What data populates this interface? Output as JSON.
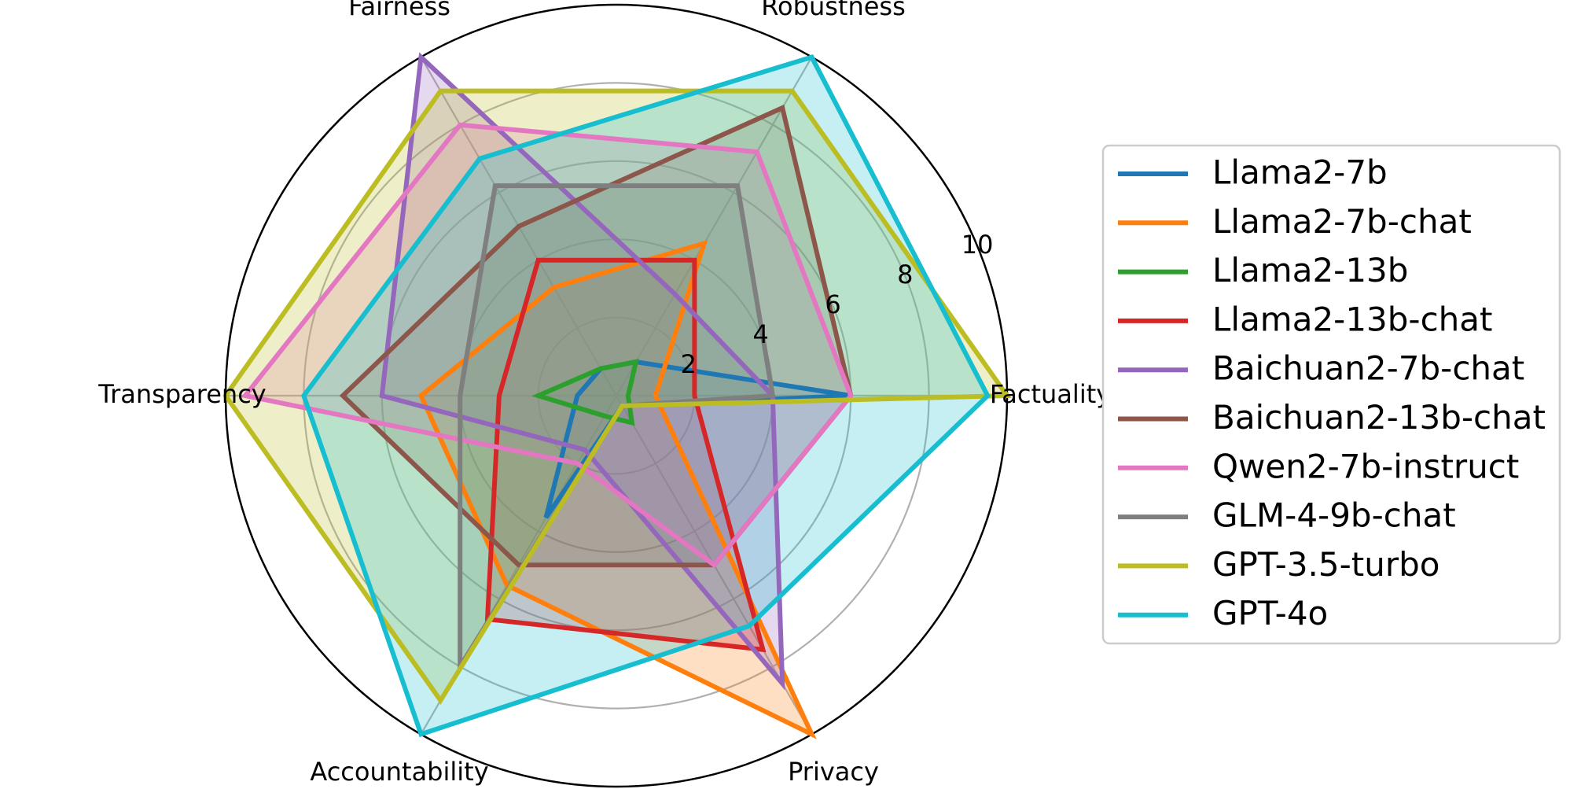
{
  "chart_data": {
    "type": "radar",
    "axes": [
      "Factuality",
      "Robustness",
      "Fairness",
      "Transparency",
      "Accountability",
      "Privacy"
    ],
    "rlim": [
      0,
      10
    ],
    "rticks": [
      "2",
      "4",
      "6",
      "8",
      "10"
    ],
    "grid": true,
    "legend_position": "right",
    "series": [
      {
        "name": "Llama2-7b",
        "color": "#1f77b4",
        "values": [
          6.0,
          1.0,
          0.8,
          1.0,
          3.6,
          0.3
        ]
      },
      {
        "name": "Llama2-7b-chat",
        "color": "#ff7f0e",
        "values": [
          1.0,
          4.5,
          3.2,
          5.0,
          5.6,
          10.0
        ]
      },
      {
        "name": "Llama2-13b",
        "color": "#2ca02c",
        "values": [
          0.3,
          1.0,
          0.8,
          2.0,
          0.6,
          0.8
        ]
      },
      {
        "name": "Llama2-13b-chat",
        "color": "#d62728",
        "values": [
          2.0,
          4.0,
          4.0,
          3.0,
          6.6,
          7.5
        ]
      },
      {
        "name": "Baichuan2-7b-chat",
        "color": "#9467bd",
        "values": [
          4.0,
          3.0,
          10.0,
          6.0,
          1.6,
          8.5
        ]
      },
      {
        "name": "Baichuan2-13b-chat",
        "color": "#8c564b",
        "values": [
          6.0,
          8.5,
          5.0,
          7.0,
          5.0,
          5.0
        ]
      },
      {
        "name": "Qwen2-7b-instruct",
        "color": "#e377c2",
        "values": [
          6.0,
          7.2,
          8.0,
          9.5,
          2.0,
          5.0
        ]
      },
      {
        "name": "GLM-4-9b-chat",
        "color": "#7f7f7f",
        "values": [
          4.0,
          6.2,
          6.2,
          4.0,
          8.0,
          0.3
        ]
      },
      {
        "name": "GPT-3.5-turbo",
        "color": "#bcbd22",
        "values": [
          10.0,
          9.0,
          9.0,
          10.0,
          9.0,
          0.3
        ]
      },
      {
        "name": "GPT-4o",
        "color": "#17becf",
        "values": [
          9.5,
          10.0,
          7.0,
          8.0,
          10.0,
          6.8
        ]
      }
    ]
  }
}
